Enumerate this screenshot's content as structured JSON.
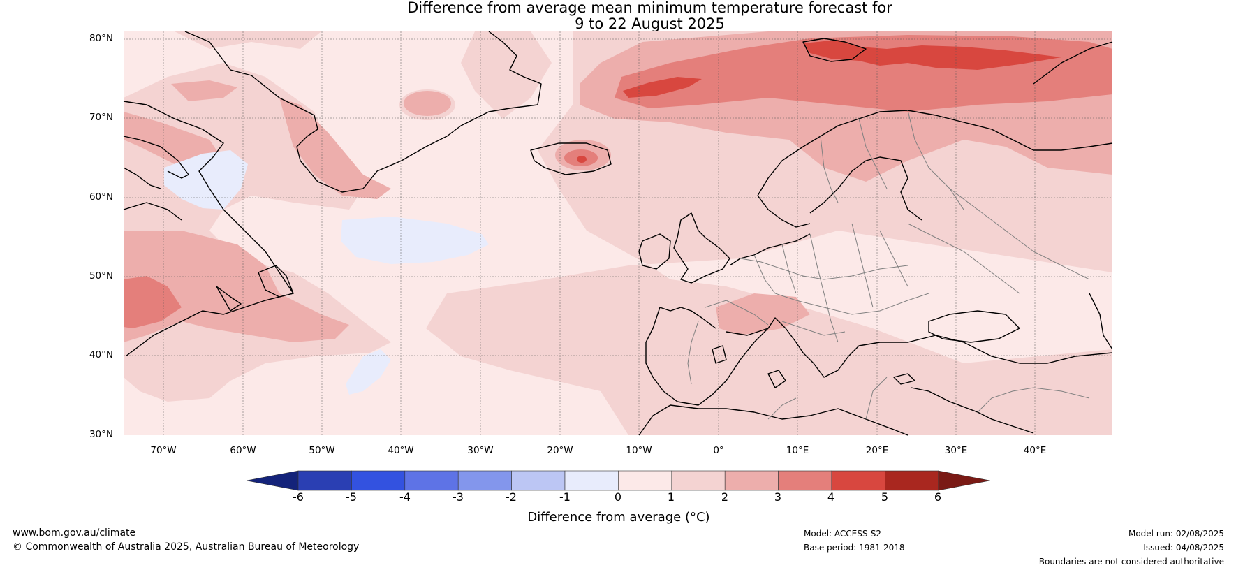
{
  "title": {
    "line1": "Difference from average mean minimum temperature forecast for",
    "line2": "9 to 22 August 2025"
  },
  "axes": {
    "lat_labels": [
      "80°N",
      "70°N",
      "60°N",
      "50°N",
      "40°N",
      "30°N"
    ],
    "lon_labels": [
      "70°W",
      "60°W",
      "50°W",
      "40°W",
      "30°W",
      "20°W",
      "10°W",
      "0°",
      "10°E",
      "20°E",
      "30°E",
      "40°E"
    ]
  },
  "colorbar": {
    "ticks": [
      "-6",
      "-5",
      "-4",
      "-3",
      "-2",
      "-1",
      "0",
      "1",
      "2",
      "3",
      "4",
      "5",
      "6"
    ],
    "colors": [
      "#14237a",
      "#2a3fb3",
      "#3352e0",
      "#5e73e6",
      "#8396ec",
      "#bcc6f4",
      "#e8ecfc",
      "#fce9e8",
      "#f4d3d2",
      "#edaeac",
      "#e47f7b",
      "#d8473f",
      "#a9271f",
      "#7a1a15"
    ],
    "label": "Difference from average (°C)"
  },
  "footer": {
    "website": "www.bom.gov.au/climate",
    "copyright": "© Commonwealth of Australia 2025, Australian Bureau of Meteorology",
    "model": "Model: ACCESS-S2",
    "base_period": "Base period: 1981-2018",
    "model_run": "Model run: 02/08/2025",
    "issued": "Issued: 04/08/2025",
    "disclaimer": "Boundaries are not considered authoritative"
  }
}
